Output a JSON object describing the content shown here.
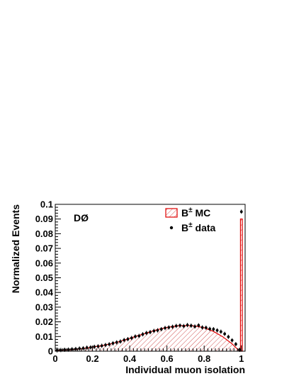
{
  "chart_data": {
    "type": "line",
    "title": "",
    "experiment_label": "DØ",
    "xlabel": "Individual muon isolation",
    "ylabel": "Normalized Events",
    "xlim": [
      0,
      1.02
    ],
    "ylim": [
      0,
      0.1
    ],
    "x_ticks": [
      0,
      0.2,
      0.4,
      0.6,
      0.8,
      1
    ],
    "x_tick_labels": [
      "0",
      "0.2",
      "0.4",
      "0.6",
      "0.8",
      "1"
    ],
    "y_ticks": [
      0,
      0.01,
      0.02,
      0.03,
      0.04,
      0.05,
      0.06,
      0.07,
      0.08,
      0.09,
      0.1
    ],
    "y_tick_labels": [
      "0",
      "0.01",
      "0.02",
      "0.03",
      "0.04",
      "0.05",
      "0.06",
      "0.07",
      "0.08",
      "0.09",
      "0.1"
    ],
    "grid": false,
    "legend_position": "top-right",
    "legend": [
      {
        "label": "B",
        "superscript": "±",
        "suffix": " MC",
        "style": "hatched-red-box"
      },
      {
        "label": "B",
        "superscript": "±",
        "suffix": " data",
        "style": "black-point"
      }
    ],
    "colors": {
      "mc_line": "#e00000",
      "mc_hatch": "#e06060",
      "data": "#000000"
    },
    "mc_curve": {
      "x": [
        0.0,
        0.05,
        0.1,
        0.15,
        0.2,
        0.25,
        0.3,
        0.35,
        0.4,
        0.45,
        0.5,
        0.55,
        0.6,
        0.65,
        0.7,
        0.75,
        0.8,
        0.85,
        0.9,
        0.95,
        0.985
      ],
      "y": [
        0.0005,
        0.0008,
        0.0012,
        0.0018,
        0.0028,
        0.0038,
        0.005,
        0.0068,
        0.0088,
        0.0108,
        0.0128,
        0.0148,
        0.0162,
        0.0172,
        0.0175,
        0.0172,
        0.016,
        0.0135,
        0.0098,
        0.005,
        0.0006
      ]
    },
    "mc_last_bin": {
      "x_range": [
        0.995,
        1.005
      ],
      "y": 0.09
    },
    "data_points": {
      "x": [
        0.01,
        0.03,
        0.05,
        0.07,
        0.09,
        0.11,
        0.13,
        0.15,
        0.17,
        0.19,
        0.21,
        0.23,
        0.25,
        0.27,
        0.29,
        0.31,
        0.33,
        0.35,
        0.37,
        0.39,
        0.41,
        0.43,
        0.45,
        0.47,
        0.49,
        0.51,
        0.53,
        0.55,
        0.57,
        0.59,
        0.61,
        0.63,
        0.65,
        0.67,
        0.69,
        0.71,
        0.73,
        0.75,
        0.77,
        0.79,
        0.81,
        0.83,
        0.85,
        0.87,
        0.89,
        0.91,
        0.93,
        0.95,
        0.97,
        0.99,
        1.0
      ],
      "y": [
        0.0006,
        0.0008,
        0.001,
        0.0011,
        0.0013,
        0.0015,
        0.0018,
        0.002,
        0.0024,
        0.0026,
        0.003,
        0.0033,
        0.0037,
        0.0042,
        0.0047,
        0.0054,
        0.006,
        0.0066,
        0.0076,
        0.0082,
        0.009,
        0.01,
        0.0104,
        0.0115,
        0.0124,
        0.013,
        0.0138,
        0.0142,
        0.015,
        0.0158,
        0.0162,
        0.0166,
        0.0172,
        0.0175,
        0.0171,
        0.0178,
        0.0174,
        0.0168,
        0.0176,
        0.0162,
        0.016,
        0.0152,
        0.015,
        0.0142,
        0.0133,
        0.0118,
        0.0098,
        0.0074,
        0.0048,
        0.001,
        0.095
      ]
    }
  }
}
